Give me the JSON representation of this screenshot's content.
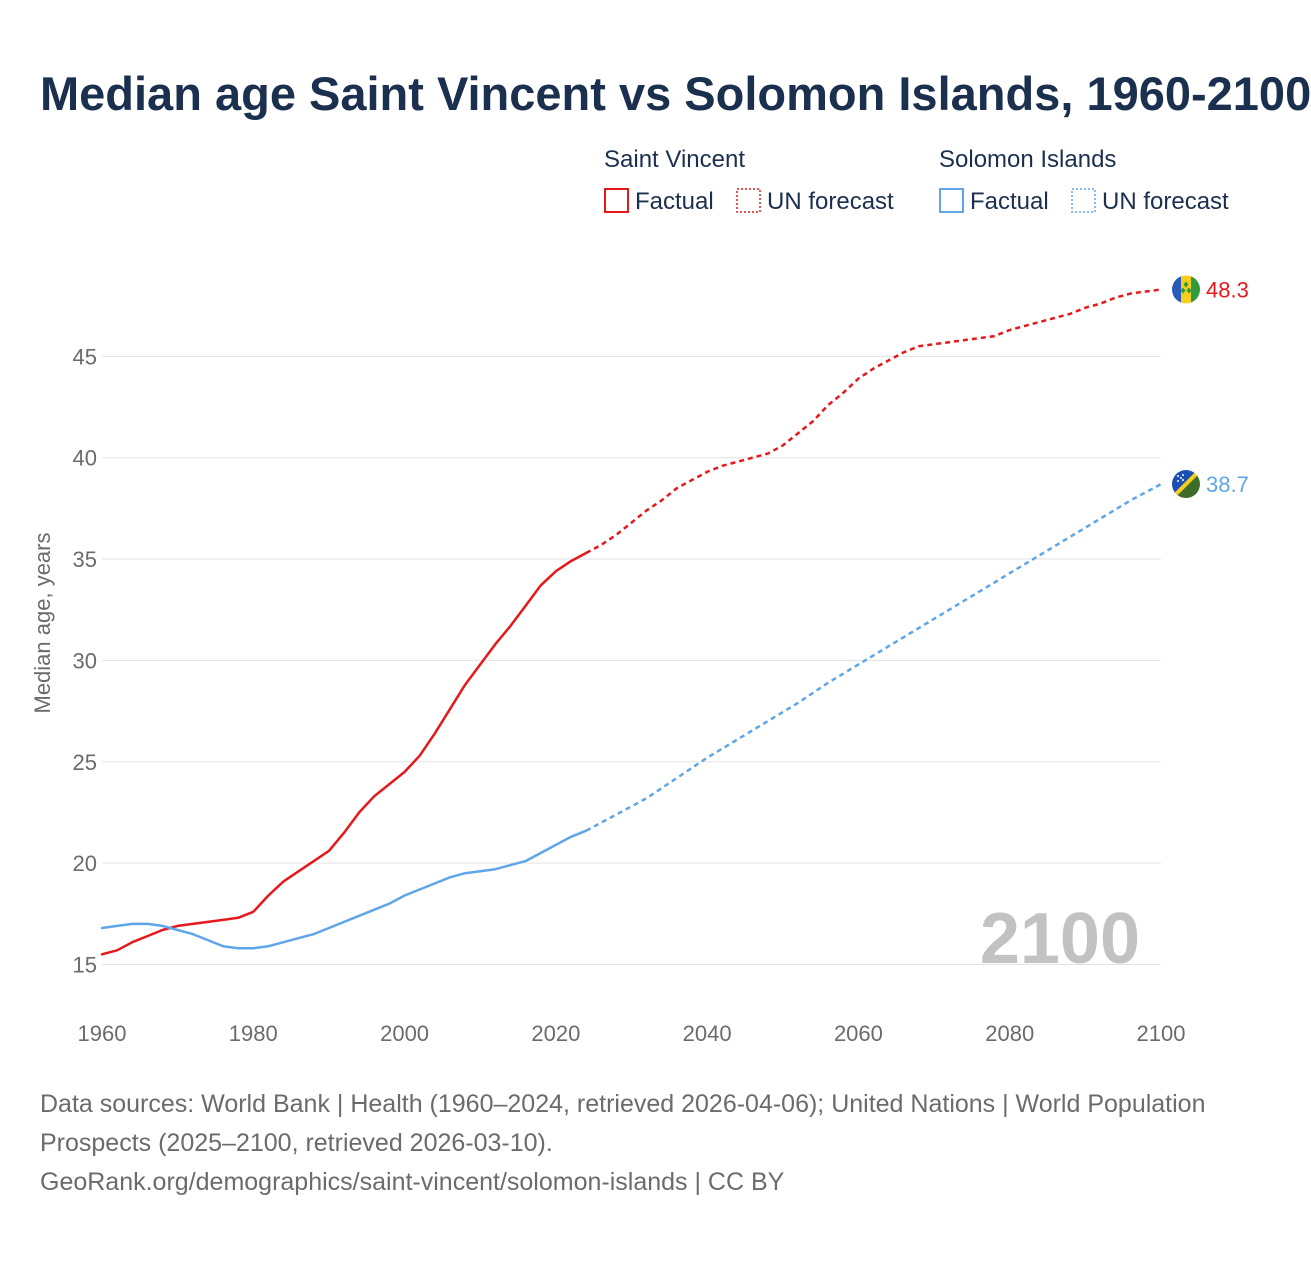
{
  "title": "Median age Saint Vincent vs Solomon Islands, 1960-2100",
  "footer": {
    "sources": "Data sources: World Bank | Health (1960–2024, retrieved 2026-04-06); United Nations | World Population Prospects (2025–2100, retrieved 2026-03-10).",
    "url": "GeoRank.org/demographics/saint-vincent/solomon-islands | CC BY"
  },
  "chart_data": {
    "type": "line",
    "title": "Median age Saint Vincent vs Solomon Islands, 1960-2100",
    "xlabel": "",
    "ylabel": "Median age, years",
    "xlim": [
      1960,
      2100
    ],
    "ylim": [
      13,
      50
    ],
    "x_ticks": [
      1960,
      1980,
      2000,
      2020,
      2040,
      2060,
      2080,
      2100
    ],
    "y_ticks": [
      15,
      20,
      25,
      30,
      35,
      40,
      45
    ],
    "grid": true,
    "year_watermark": "2100",
    "legend": {
      "placement": "top-right",
      "groups": [
        {
          "name": "Saint Vincent",
          "entries": [
            "Factual",
            "UN forecast"
          ]
        },
        {
          "name": "Solomon Islands",
          "entries": [
            "Factual",
            "UN forecast"
          ]
        }
      ]
    },
    "series": [
      {
        "name": "Saint Vincent",
        "color": "#e5191c",
        "end_label": "48.3",
        "factual": {
          "x": [
            1960,
            1962,
            1964,
            1966,
            1968,
            1970,
            1972,
            1974,
            1976,
            1978,
            1980,
            1982,
            1984,
            1986,
            1988,
            1990,
            1992,
            1994,
            1996,
            1998,
            2000,
            2002,
            2004,
            2006,
            2008,
            2010,
            2012,
            2014,
            2016,
            2018,
            2020,
            2022,
            2024
          ],
          "y": [
            15.5,
            15.7,
            16.1,
            16.4,
            16.7,
            16.9,
            17.0,
            17.1,
            17.2,
            17.3,
            17.6,
            18.4,
            19.1,
            19.6,
            20.1,
            20.6,
            21.5,
            22.5,
            23.3,
            23.9,
            24.5,
            25.3,
            26.4,
            27.6,
            28.8,
            29.8,
            30.8,
            31.7,
            32.7,
            33.7,
            34.4,
            34.9,
            35.3
          ]
        },
        "forecast": {
          "x": [
            2024,
            2026,
            2028,
            2030,
            2032,
            2034,
            2036,
            2038,
            2040,
            2042,
            2044,
            2046,
            2048,
            2050,
            2052,
            2054,
            2056,
            2058,
            2060,
            2062,
            2064,
            2066,
            2068,
            2070,
            2072,
            2074,
            2076,
            2078,
            2080,
            2082,
            2084,
            2086,
            2088,
            2090,
            2092,
            2094,
            2096,
            2098,
            2100
          ],
          "y": [
            35.3,
            35.7,
            36.2,
            36.8,
            37.4,
            37.9,
            38.5,
            38.9,
            39.3,
            39.6,
            39.8,
            40.0,
            40.2,
            40.6,
            41.2,
            41.8,
            42.6,
            43.2,
            43.9,
            44.4,
            44.8,
            45.2,
            45.5,
            45.6,
            45.7,
            45.8,
            45.9,
            46.0,
            46.3,
            46.5,
            46.7,
            46.9,
            47.1,
            47.4,
            47.6,
            47.9,
            48.1,
            48.2,
            48.3
          ]
        }
      },
      {
        "name": "Solomon Islands",
        "color": "#5fa6e8",
        "end_label": "38.7",
        "factual": {
          "x": [
            1960,
            1962,
            1964,
            1966,
            1968,
            1970,
            1972,
            1974,
            1976,
            1978,
            1980,
            1982,
            1984,
            1986,
            1988,
            1990,
            1992,
            1994,
            1996,
            1998,
            2000,
            2002,
            2004,
            2006,
            2008,
            2010,
            2012,
            2014,
            2016,
            2018,
            2020,
            2022,
            2024
          ],
          "y": [
            16.8,
            16.9,
            17.0,
            17.0,
            16.9,
            16.7,
            16.5,
            16.2,
            15.9,
            15.8,
            15.8,
            15.9,
            16.1,
            16.3,
            16.5,
            16.8,
            17.1,
            17.4,
            17.7,
            18.0,
            18.4,
            18.7,
            19.0,
            19.3,
            19.5,
            19.6,
            19.7,
            19.9,
            20.1,
            20.5,
            20.9,
            21.3,
            21.6
          ]
        },
        "forecast": {
          "x": [
            2024,
            2028,
            2032,
            2036,
            2040,
            2044,
            2048,
            2052,
            2056,
            2060,
            2064,
            2068,
            2072,
            2076,
            2080,
            2084,
            2088,
            2092,
            2096,
            2100
          ],
          "y": [
            21.6,
            22.4,
            23.2,
            24.2,
            25.2,
            26.1,
            27.0,
            27.9,
            28.9,
            29.8,
            30.7,
            31.6,
            32.5,
            33.4,
            34.3,
            35.2,
            36.1,
            37.0,
            37.9,
            38.7
          ]
        }
      }
    ]
  }
}
